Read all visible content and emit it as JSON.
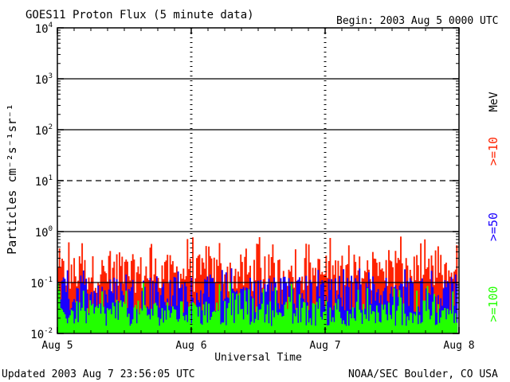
{
  "header": {
    "title": "GOES11 Proton Flux (5 minute data)",
    "begin": "Begin: 2003 Aug 5 0000 UTC"
  },
  "footer": {
    "updated": "Updated 2003 Aug  7 23:56:05 UTC",
    "source": "NOAA/SEC Boulder, CO USA"
  },
  "chart_data": {
    "type": "line",
    "title": "GOES11 Proton Flux (5 minute data)",
    "xlabel": "Universal Time",
    "ylabel": "Particles cm⁻²s⁻¹sr⁻¹",
    "y_scale": "log",
    "ylim": [
      0.01,
      10000
    ],
    "ytick_labels": [
      {
        "base": "10",
        "exp": "-2",
        "value": 0.01
      },
      {
        "base": "10",
        "exp": "-1",
        "value": 0.1
      },
      {
        "base": "10",
        "exp": "0",
        "value": 1
      },
      {
        "base": "10",
        "exp": "1",
        "value": 10
      },
      {
        "base": "10",
        "exp": "2",
        "value": 100
      },
      {
        "base": "10",
        "exp": "3",
        "value": 1000
      },
      {
        "base": "10",
        "exp": "4",
        "value": 10000
      }
    ],
    "xtick_labels": [
      "Aug 5",
      "Aug 6",
      "Aug 7",
      "Aug 8"
    ],
    "xlim": [
      "2003-08-05",
      "2003-08-08"
    ],
    "threshold_lines": [
      {
        "value": 10,
        "style": "dashed"
      },
      {
        "value": 0.1,
        "style": "solid"
      }
    ],
    "unit_label": "MeV",
    "series": [
      {
        "name": ">=10",
        "color": "#ff2200",
        "approx_range": [
          0.05,
          0.8
        ],
        "typical": 0.15
      },
      {
        "name": ">=50",
        "color": "#1a00ff",
        "approx_range": [
          0.02,
          0.2
        ],
        "typical": 0.06
      },
      {
        "name": ">=100",
        "color": "#22ff00",
        "approx_range": [
          0.012,
          0.1
        ],
        "typical": 0.025
      }
    ]
  }
}
